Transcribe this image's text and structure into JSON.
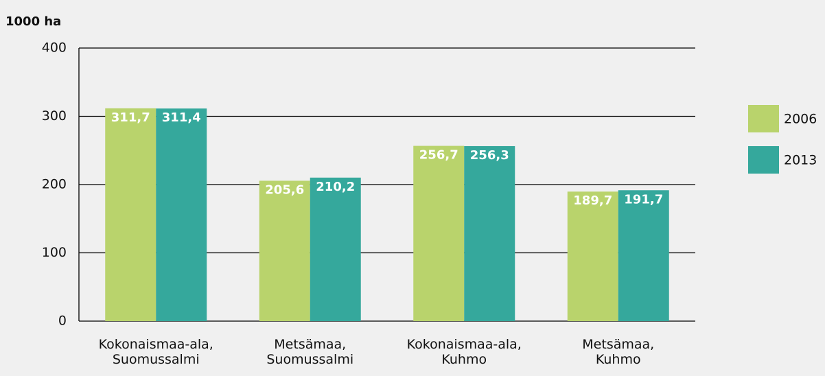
{
  "chart_data": {
    "type": "bar",
    "y_label": "1000 ha",
    "categories": [
      [
        "Kokonaismaa-ala,",
        "Suomussalmi"
      ],
      [
        "Metsämaa,",
        "Suomussalmi"
      ],
      [
        "Kokonaismaa-ala,",
        "Kuhmo"
      ],
      [
        "Metsämaa,",
        "Kuhmo"
      ]
    ],
    "series": [
      {
        "name": "2006",
        "color": "#b9d36c",
        "values": [
          311.7,
          205.6,
          256.7,
          189.7
        ],
        "value_labels": [
          "311,7",
          "205,6",
          "256,7",
          "189,7"
        ]
      },
      {
        "name": "2013",
        "color": "#35a89c",
        "values": [
          311.4,
          210.2,
          256.3,
          191.7
        ],
        "value_labels": [
          "311,4",
          "210,2",
          "256,3",
          "191,7"
        ]
      }
    ],
    "ylim": [
      0,
      400
    ],
    "yticks": [
      0,
      100,
      200,
      300,
      400
    ],
    "grid": true,
    "legend": "right"
  }
}
